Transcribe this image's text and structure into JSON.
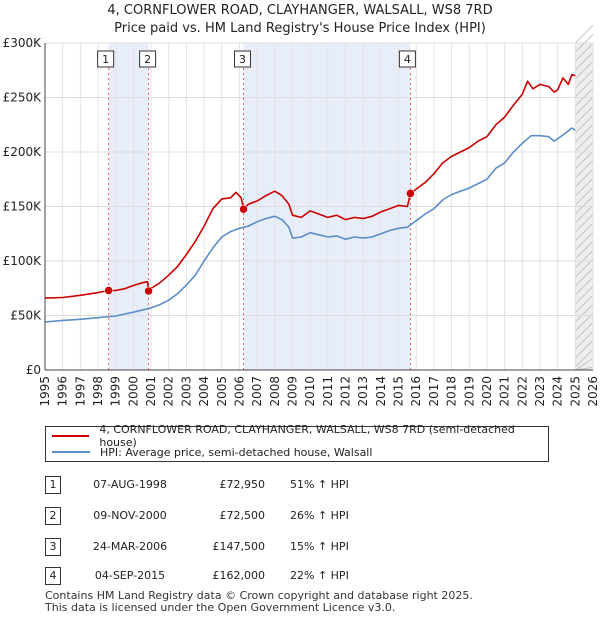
{
  "chart_data": {
    "type": "line",
    "title": "4, CORNFLOWER ROAD, CLAYHANGER, WALSALL, WS8 7RD",
    "subtitle": "Price paid vs. HM Land Registry's House Price Index (HPI)",
    "xlim": [
      1995,
      2026
    ],
    "ylim": [
      0,
      300000
    ],
    "xticks": [
      "1995",
      "1996",
      "1997",
      "1998",
      "1999",
      "2000",
      "2001",
      "2002",
      "2003",
      "2004",
      "2005",
      "2006",
      "2007",
      "2008",
      "2009",
      "2010",
      "2011",
      "2012",
      "2013",
      "2014",
      "2015",
      "2016",
      "2017",
      "2018",
      "2019",
      "2020",
      "2021",
      "2022",
      "2023",
      "2024",
      "2025",
      "2026"
    ],
    "yticks": [
      {
        "value": 0,
        "label": "£0"
      },
      {
        "value": 50000,
        "label": "£50K"
      },
      {
        "value": 100000,
        "label": "£100K"
      },
      {
        "value": 150000,
        "label": "£150K"
      },
      {
        "value": 200000,
        "label": "£200K"
      },
      {
        "value": 250000,
        "label": "£250K"
      },
      {
        "value": 300000,
        "label": "£300K"
      }
    ],
    "shaded_ranges": [
      [
        1998.6,
        2000.86
      ],
      [
        2006.23,
        2015.67
      ],
      [
        2025.0,
        2026.0
      ]
    ],
    "series": [
      {
        "name": "4, CORNFLOWER ROAD, CLAYHANGER, WALSALL, WS8 7RD (semi-detached house)",
        "color": "#cc0000",
        "points": [
          [
            1995.0,
            66000
          ],
          [
            1996.0,
            66500
          ],
          [
            1997.0,
            68500
          ],
          [
            1998.0,
            71000
          ],
          [
            1998.6,
            72950
          ],
          [
            1999.0,
            73000
          ],
          [
            1999.5,
            74500
          ],
          [
            2000.0,
            77500
          ],
          [
            2000.5,
            80000
          ],
          [
            2000.8,
            81000
          ],
          [
            2000.86,
            72500
          ],
          [
            2001.0,
            75000
          ],
          [
            2001.5,
            80000
          ],
          [
            2002.0,
            87000
          ],
          [
            2002.5,
            95000
          ],
          [
            2003.0,
            106000
          ],
          [
            2003.5,
            118000
          ],
          [
            2004.0,
            132000
          ],
          [
            2004.5,
            148000
          ],
          [
            2005.0,
            157000
          ],
          [
            2005.5,
            158000
          ],
          [
            2005.8,
            163000
          ],
          [
            2006.1,
            158000
          ],
          [
            2006.23,
            147500
          ],
          [
            2006.5,
            152000
          ],
          [
            2007.0,
            155000
          ],
          [
            2007.5,
            160000
          ],
          [
            2008.0,
            164000
          ],
          [
            2008.4,
            160000
          ],
          [
            2008.8,
            152000
          ],
          [
            2009.0,
            142000
          ],
          [
            2009.5,
            140000
          ],
          [
            2010.0,
            146000
          ],
          [
            2010.5,
            143000
          ],
          [
            2011.0,
            140000
          ],
          [
            2011.5,
            142000
          ],
          [
            2012.0,
            138000
          ],
          [
            2012.5,
            140000
          ],
          [
            2013.0,
            139000
          ],
          [
            2013.5,
            141000
          ],
          [
            2014.0,
            145000
          ],
          [
            2014.5,
            148000
          ],
          [
            2015.0,
            151000
          ],
          [
            2015.5,
            150000
          ],
          [
            2015.67,
            162000
          ],
          [
            2016.0,
            166000
          ],
          [
            2016.5,
            172000
          ],
          [
            2017.0,
            180000
          ],
          [
            2017.5,
            190000
          ],
          [
            2018.0,
            196000
          ],
          [
            2018.5,
            200000
          ],
          [
            2019.0,
            204000
          ],
          [
            2019.5,
            210000
          ],
          [
            2020.0,
            214000
          ],
          [
            2020.5,
            225000
          ],
          [
            2021.0,
            232000
          ],
          [
            2021.5,
            243000
          ],
          [
            2022.0,
            253000
          ],
          [
            2022.3,
            265000
          ],
          [
            2022.6,
            258000
          ],
          [
            2023.0,
            262000
          ],
          [
            2023.5,
            260000
          ],
          [
            2023.8,
            255000
          ],
          [
            2024.0,
            257000
          ],
          [
            2024.3,
            268000
          ],
          [
            2024.6,
            262000
          ],
          [
            2024.8,
            271000
          ],
          [
            2025.0,
            270000
          ]
        ]
      },
      {
        "name": "HPI: Average price, semi-detached house, Walsall",
        "color": "#5b8dc9",
        "points": [
          [
            1995.0,
            44000
          ],
          [
            1996.0,
            45500
          ],
          [
            1997.0,
            46500
          ],
          [
            1998.0,
            48000
          ],
          [
            1999.0,
            49500
          ],
          [
            2000.0,
            53000
          ],
          [
            2001.0,
            57000
          ],
          [
            2001.5,
            60000
          ],
          [
            2002.0,
            64000
          ],
          [
            2002.5,
            70000
          ],
          [
            2003.0,
            78000
          ],
          [
            2003.5,
            87000
          ],
          [
            2004.0,
            100000
          ],
          [
            2004.5,
            112000
          ],
          [
            2005.0,
            122000
          ],
          [
            2005.5,
            127000
          ],
          [
            2006.0,
            130000
          ],
          [
            2006.5,
            132000
          ],
          [
            2007.0,
            136000
          ],
          [
            2007.5,
            139000
          ],
          [
            2008.0,
            141000
          ],
          [
            2008.4,
            138000
          ],
          [
            2008.8,
            131000
          ],
          [
            2009.0,
            121000
          ],
          [
            2009.5,
            122000
          ],
          [
            2010.0,
            126000
          ],
          [
            2010.5,
            124000
          ],
          [
            2011.0,
            122000
          ],
          [
            2011.5,
            123000
          ],
          [
            2012.0,
            120000
          ],
          [
            2012.5,
            122000
          ],
          [
            2013.0,
            121000
          ],
          [
            2013.5,
            122000
          ],
          [
            2014.0,
            125000
          ],
          [
            2014.5,
            128000
          ],
          [
            2015.0,
            130000
          ],
          [
            2015.5,
            131000
          ],
          [
            2016.0,
            137000
          ],
          [
            2016.5,
            143000
          ],
          [
            2017.0,
            148000
          ],
          [
            2017.5,
            156000
          ],
          [
            2018.0,
            161000
          ],
          [
            2018.5,
            164000
          ],
          [
            2019.0,
            167000
          ],
          [
            2019.5,
            171000
          ],
          [
            2020.0,
            175000
          ],
          [
            2020.5,
            185000
          ],
          [
            2021.0,
            190000
          ],
          [
            2021.5,
            200000
          ],
          [
            2022.0,
            208000
          ],
          [
            2022.5,
            215000
          ],
          [
            2023.0,
            215000
          ],
          [
            2023.5,
            214000
          ],
          [
            2023.8,
            210000
          ],
          [
            2024.0,
            212000
          ],
          [
            2024.5,
            218000
          ],
          [
            2024.8,
            222000
          ],
          [
            2025.0,
            220000
          ]
        ]
      }
    ],
    "sales": [
      {
        "label": "1",
        "x": 1998.6,
        "price": 72950
      },
      {
        "label": "2",
        "x": 2000.86,
        "price": 72500
      },
      {
        "label": "3",
        "x": 2006.23,
        "price": 147500
      },
      {
        "label": "4",
        "x": 2015.67,
        "price": 162000
      }
    ]
  },
  "legend": {
    "items": [
      {
        "label": "4, CORNFLOWER ROAD, CLAYHANGER, WALSALL, WS8 7RD (semi-detached house)",
        "color": "#cc0000"
      },
      {
        "label": "HPI: Average price, semi-detached house, Walsall",
        "color": "#5b8dc9"
      }
    ]
  },
  "transactions": [
    {
      "num": "1",
      "date": "07-AUG-1998",
      "price": "£72,950",
      "rel": "51% ↑ HPI"
    },
    {
      "num": "2",
      "date": "09-NOV-2000",
      "price": "£72,500",
      "rel": "26% ↑ HPI"
    },
    {
      "num": "3",
      "date": "24-MAR-2006",
      "price": "£147,500",
      "rel": "15% ↑ HPI"
    },
    {
      "num": "4",
      "date": "04-SEP-2015",
      "price": "£162,000",
      "rel": "22% ↑ HPI"
    }
  ],
  "footer": {
    "line1": "Contains HM Land Registry data © Crown copyright and database right 2025.",
    "line2": "This data is licensed under the Open Government Licence v3.0."
  }
}
